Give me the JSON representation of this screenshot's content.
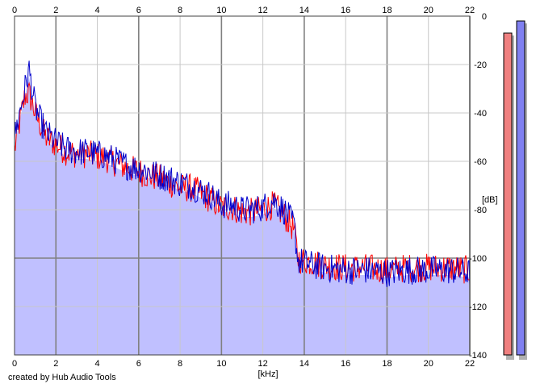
{
  "footer_text": "created by Hub Audio Tools",
  "chart_data": {
    "type": "area",
    "title": "",
    "xlabel": "[kHz]",
    "ylabel": "[dB]",
    "xlim": [
      0,
      22
    ],
    "ylim": [
      -140,
      0
    ],
    "x_ticks": [
      0,
      2,
      4,
      6,
      8,
      10,
      12,
      14,
      16,
      18,
      20,
      22
    ],
    "y_ticks": [
      0,
      -20,
      -40,
      -60,
      -80,
      -100,
      -120,
      -140
    ],
    "x_tick_labels": [
      "0",
      "2",
      "4",
      "6",
      "8",
      "10",
      "12",
      "14",
      "16",
      "18",
      "20",
      "22"
    ],
    "y_tick_labels": [
      "0",
      "-20",
      "-40",
      "-60",
      "-80",
      "-100",
      "-120",
      "-140"
    ],
    "grid": true,
    "fill_color": "#c0c0ff",
    "series": [
      {
        "color": "#ff0000",
        "x": [
          0,
          0.5,
          0.7,
          1,
          1.5,
          2,
          2.5,
          3,
          3.5,
          4,
          4.5,
          5,
          5.5,
          6,
          6.5,
          7,
          7.5,
          8,
          8.5,
          9,
          9.5,
          10,
          10.5,
          11,
          11.5,
          12,
          12.5,
          13,
          13.5,
          13.7,
          14,
          14.5,
          15,
          16,
          17,
          18,
          19,
          20,
          21,
          22
        ],
        "y": [
          -55,
          -33,
          -32,
          -40,
          -50,
          -53,
          -56,
          -57,
          -57,
          -58,
          -59,
          -61,
          -63,
          -64,
          -66,
          -67,
          -69,
          -71,
          -71,
          -73,
          -76,
          -79,
          -79,
          -81,
          -81,
          -80,
          -78,
          -82,
          -88,
          -100,
          -101,
          -102,
          -103,
          -104,
          -104,
          -105,
          -104,
          -104,
          -104,
          -105
        ]
      },
      {
        "color": "#0000cc",
        "x": [
          0,
          0.5,
          0.7,
          1,
          1.5,
          2,
          2.5,
          3,
          3.5,
          4,
          4.5,
          5,
          5.5,
          6,
          6.5,
          7,
          7.5,
          8,
          8.5,
          9,
          9.5,
          10,
          10.5,
          11,
          11.5,
          12,
          12.5,
          13,
          13.5,
          13.7,
          14,
          14.5,
          15,
          16,
          17,
          18,
          19,
          20,
          21,
          22
        ],
        "y": [
          -50,
          -30,
          -22,
          -38,
          -48,
          -52,
          -55,
          -56,
          -56,
          -57,
          -58,
          -60,
          -62,
          -63,
          -64,
          -66,
          -67,
          -69,
          -70,
          -72,
          -74,
          -78,
          -78,
          -80,
          -80,
          -79,
          -76,
          -80,
          -86,
          -101,
          -102,
          -103,
          -104,
          -105,
          -105,
          -106,
          -105,
          -105,
          -105,
          -106
        ]
      }
    ],
    "level_meters": [
      {
        "color": "#f08080",
        "value_db": -7
      },
      {
        "color": "#8080f0",
        "value_db": -2
      }
    ]
  }
}
